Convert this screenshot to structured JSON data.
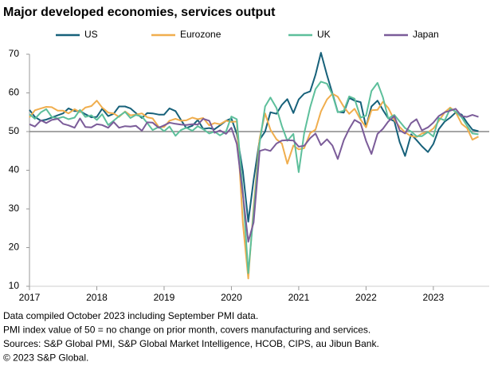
{
  "chart_data": {
    "type": "line",
    "title": "Major developed economies, services output",
    "notes": [
      "Data compiled October 2023 including September PMI data.",
      "PMI index value of 50 = no change on prior month, covers manufacturing and services.",
      "Sources: S&P Global PMI, S&P Global Market Intelligence, HCOB, CIPS, au Jibun Bank.",
      "© 2023 S&P Global."
    ],
    "x": [
      2017.0,
      2017.08,
      2017.17,
      2017.25,
      2017.33,
      2017.42,
      2017.5,
      2017.58,
      2017.67,
      2017.75,
      2017.83,
      2017.92,
      2018.0,
      2018.08,
      2018.17,
      2018.25,
      2018.33,
      2018.42,
      2018.5,
      2018.58,
      2018.67,
      2018.75,
      2018.83,
      2018.92,
      2019.0,
      2019.08,
      2019.17,
      2019.25,
      2019.33,
      2019.42,
      2019.5,
      2019.58,
      2019.67,
      2019.75,
      2019.83,
      2019.92,
      2020.0,
      2020.08,
      2020.17,
      2020.25,
      2020.33,
      2020.42,
      2020.5,
      2020.58,
      2020.67,
      2020.75,
      2020.83,
      2020.92,
      2021.0,
      2021.08,
      2021.17,
      2021.25,
      2021.33,
      2021.42,
      2021.5,
      2021.58,
      2021.67,
      2021.75,
      2021.83,
      2021.92,
      2022.0,
      2022.08,
      2022.17,
      2022.25,
      2022.33,
      2022.42,
      2022.5,
      2022.58,
      2022.67,
      2022.75,
      2022.83,
      2022.92,
      2023.0,
      2023.08,
      2023.17,
      2023.25,
      2023.33,
      2023.42,
      2023.5,
      2023.58,
      2023.67
    ],
    "series": [
      {
        "name": "US",
        "color": "#17617a",
        "values": [
          55.6,
          53.8,
          52.8,
          53.1,
          53.6,
          54.2,
          54.7,
          56.0,
          55.3,
          55.3,
          54.5,
          53.7,
          53.8,
          55.9,
          54.0,
          54.6,
          56.5,
          56.5,
          56.0,
          54.8,
          53.5,
          54.8,
          54.7,
          54.4,
          54.4,
          56.0,
          55.3,
          53.0,
          50.9,
          51.5,
          53.0,
          50.7,
          50.9,
          50.6,
          51.6,
          52.8,
          53.4,
          49.4,
          39.8,
          26.7,
          37.5,
          47.9,
          50.0,
          55.0,
          54.6,
          56.9,
          58.4,
          54.8,
          58.3,
          59.8,
          60.4,
          64.7,
          70.4,
          64.6,
          59.9,
          55.1,
          54.9,
          58.7,
          58.0,
          57.6,
          51.2,
          56.5,
          58.0,
          55.6,
          53.4,
          52.7,
          47.3,
          43.7,
          49.3,
          47.8,
          46.2,
          44.7,
          46.8,
          50.6,
          52.6,
          53.6,
          54.9,
          54.4,
          52.3,
          50.5,
          50.1
        ]
      },
      {
        "name": "Eurozone",
        "color": "#f0ae4e",
        "values": [
          53.7,
          55.5,
          56.0,
          56.4,
          56.3,
          55.4,
          55.4,
          54.7,
          55.8,
          55.0,
          56.2,
          56.6,
          58.0,
          56.2,
          54.9,
          54.7,
          53.8,
          55.2,
          54.2,
          54.4,
          54.7,
          53.7,
          53.4,
          51.2,
          51.2,
          52.8,
          53.3,
          52.8,
          52.9,
          53.6,
          53.2,
          53.5,
          51.6,
          52.2,
          51.9,
          52.8,
          52.5,
          52.6,
          26.4,
          12.0,
          30.5,
          48.3,
          54.7,
          50.5,
          48.0,
          46.9,
          41.7,
          46.4,
          45.4,
          45.7,
          49.6,
          50.5,
          55.2,
          58.3,
          59.8,
          59.0,
          56.4,
          54.6,
          55.9,
          53.1,
          51.1,
          55.5,
          55.6,
          57.7,
          56.1,
          53.0,
          51.2,
          49.8,
          48.8,
          48.6,
          49.5,
          49.8,
          50.8,
          52.7,
          55.0,
          56.2,
          55.1,
          52.0,
          50.9,
          47.9,
          48.7
        ]
      },
      {
        "name": "UK",
        "color": "#5dbf9b",
        "values": [
          54.5,
          53.3,
          55.0,
          55.8,
          53.8,
          53.4,
          53.8,
          53.2,
          53.6,
          55.6,
          53.8,
          54.2,
          53.0,
          54.5,
          51.7,
          52.8,
          54.0,
          55.1,
          53.5,
          54.3,
          53.9,
          52.2,
          50.4,
          51.2,
          50.1,
          51.3,
          48.9,
          50.4,
          51.0,
          50.2,
          51.4,
          50.6,
          49.5,
          50.0,
          49.0,
          50.0,
          53.9,
          53.2,
          34.5,
          13.4,
          29.0,
          47.1,
          56.5,
          58.8,
          56.1,
          51.4,
          47.6,
          49.4,
          39.5,
          49.5,
          56.3,
          61.0,
          62.9,
          62.4,
          59.6,
          55.0,
          55.4,
          59.1,
          58.5,
          53.6,
          54.1,
          60.5,
          62.6,
          58.9,
          53.4,
          54.3,
          52.6,
          50.9,
          50.0,
          48.8,
          48.8,
          49.9,
          48.7,
          53.5,
          52.9,
          55.9,
          55.2,
          53.7,
          51.5,
          49.5,
          49.3
        ]
      },
      {
        "name": "Japan",
        "color": "#7b5c99",
        "values": [
          51.9,
          51.3,
          52.9,
          52.2,
          53.0,
          53.3,
          52.0,
          51.6,
          51.0,
          53.4,
          51.2,
          51.1,
          51.9,
          51.7,
          51.0,
          52.5,
          51.0,
          51.4,
          51.3,
          51.5,
          50.2,
          52.4,
          52.3,
          51.0,
          51.6,
          52.3,
          52.0,
          51.8,
          51.7,
          51.9,
          51.8,
          53.3,
          52.8,
          49.7,
          50.3,
          49.4,
          51.0,
          46.8,
          33.8,
          21.5,
          26.5,
          45.0,
          45.4,
          45.0,
          46.9,
          47.7,
          47.8,
          47.7,
          46.1,
          46.3,
          48.3,
          49.5,
          46.5,
          48.0,
          46.4,
          42.9,
          47.8,
          50.7,
          53.0,
          52.1,
          47.6,
          44.2,
          49.4,
          50.7,
          52.6,
          54.0,
          50.3,
          49.5,
          52.2,
          53.2,
          50.3,
          51.1,
          52.3,
          54.0,
          55.0,
          55.4,
          55.9,
          54.0,
          53.8,
          54.3,
          53.8
        ]
      }
    ],
    "xlim": [
      2017,
      2023.83
    ],
    "xticks": [
      2017,
      2018,
      2019,
      2020,
      2021,
      2022,
      2023
    ],
    "ylim": [
      10,
      70
    ],
    "yticks": [
      10,
      20,
      30,
      40,
      50,
      60,
      70
    ],
    "reference_line": 50,
    "grid": false,
    "legend": "top"
  }
}
